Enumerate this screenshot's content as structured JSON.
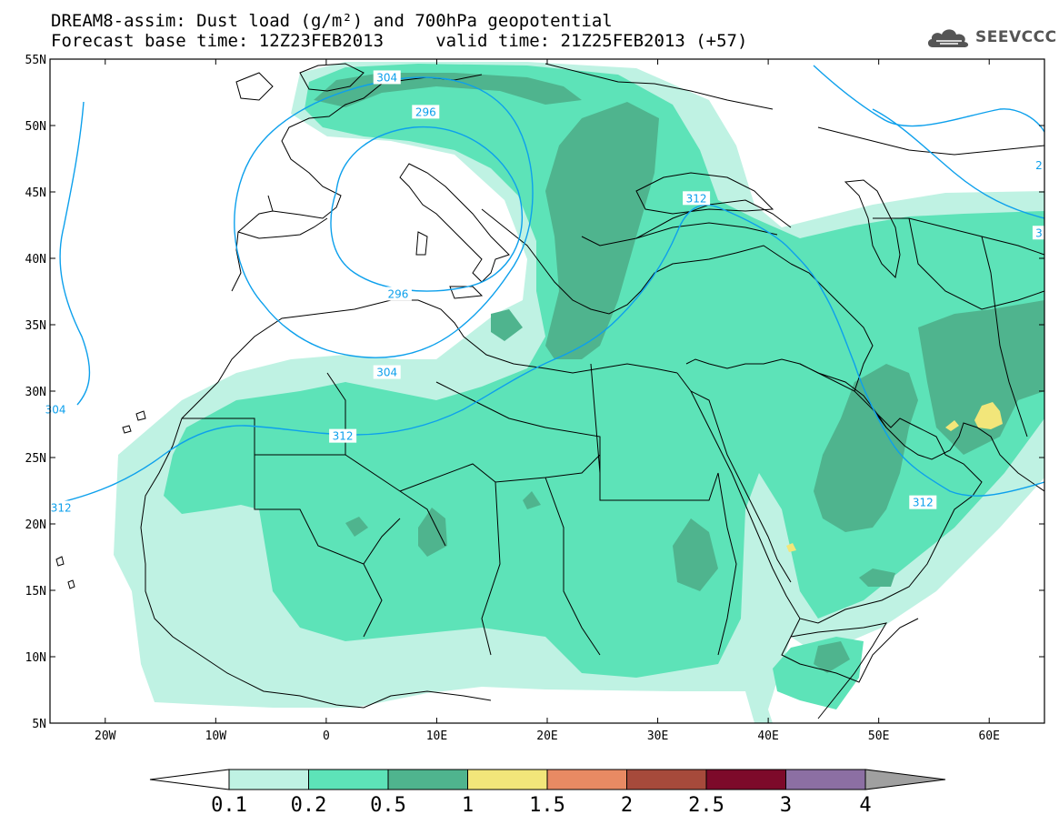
{
  "title": {
    "line1": "DREAM8-assim: Dust load (g/m²) and 700hPa geopotential",
    "line2": "Forecast base time: 12Z23FEB2013     valid time: 21Z25FEB2013 (+57)"
  },
  "logo": {
    "text": "SEEVCCC",
    "icon": "cloud-logo-icon"
  },
  "map": {
    "lon_range": [
      -25,
      65
    ],
    "lat_range": [
      5,
      55
    ],
    "lat_ticks": [
      {
        "value": 55,
        "label": "55N"
      },
      {
        "value": 50,
        "label": "50N"
      },
      {
        "value": 45,
        "label": "45N"
      },
      {
        "value": 40,
        "label": "40N"
      },
      {
        "value": 35,
        "label": "35N"
      },
      {
        "value": 30,
        "label": "30N"
      },
      {
        "value": 25,
        "label": "25N"
      },
      {
        "value": 20,
        "label": "20N"
      },
      {
        "value": 15,
        "label": "15N"
      },
      {
        "value": 10,
        "label": "10N"
      },
      {
        "value": 5,
        "label": "5N"
      }
    ],
    "lon_ticks": [
      {
        "value": -20,
        "label": "20W"
      },
      {
        "value": -10,
        "label": "10W"
      },
      {
        "value": 0,
        "label": "0"
      },
      {
        "value": 10,
        "label": "10E"
      },
      {
        "value": 20,
        "label": "20E"
      },
      {
        "value": 30,
        "label": "30E"
      },
      {
        "value": 40,
        "label": "40E"
      },
      {
        "value": 50,
        "label": "50E"
      },
      {
        "value": 60,
        "label": "60E"
      }
    ],
    "geopotential_contour_labels": [
      {
        "label": "304",
        "lon": 5.5,
        "lat": 53.6
      },
      {
        "label": "296",
        "lon": 9.0,
        "lat": 51.0
      },
      {
        "label": "296",
        "lon": 6.5,
        "lat": 37.3
      },
      {
        "label": "304",
        "lon": 5.5,
        "lat": 31.4
      },
      {
        "label": "312",
        "lon": 1.5,
        "lat": 26.6
      },
      {
        "label": "312",
        "lon": 33.5,
        "lat": 44.5
      },
      {
        "label": "312",
        "lon": 54.0,
        "lat": 21.6
      },
      {
        "label": "312",
        "lon": -24.0,
        "lat": 21.2
      },
      {
        "label": "304",
        "lon": -24.5,
        "lat": 28.6
      },
      {
        "label": "3",
        "lon": 64.5,
        "lat": 41.9
      },
      {
        "label": "2",
        "lon": 64.5,
        "lat": 47.0
      }
    ]
  },
  "colorbar": {
    "title": "Dust load (g/m²)",
    "levels": [
      "0.1",
      "0.2",
      "0.5",
      "1",
      "1.5",
      "2",
      "2.5",
      "3",
      "4"
    ],
    "colors": [
      "#bff2e3",
      "#5de3b8",
      "#4fb48e",
      "#f2e67a",
      "#e88a63",
      "#a64a3b",
      "#7d0a2a",
      "#8c6fa3"
    ],
    "under_color": "#ffffff",
    "over_color": "#a0a0a0"
  },
  "colors": {
    "contour": "#0da0ec",
    "coastline": "#000000",
    "frame": "#000000"
  }
}
